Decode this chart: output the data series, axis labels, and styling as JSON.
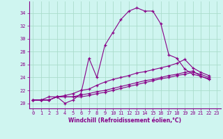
{
  "xlabel": "Windchill (Refroidissement éolien,°C)",
  "xlim": [
    -0.5,
    23.5
  ],
  "ylim": [
    19.2,
    35.8
  ],
  "yticks": [
    20,
    22,
    24,
    26,
    28,
    30,
    32,
    34
  ],
  "xticks": [
    0,
    1,
    2,
    3,
    4,
    5,
    6,
    7,
    8,
    9,
    10,
    11,
    12,
    13,
    14,
    15,
    16,
    17,
    18,
    19,
    20,
    21,
    22,
    23
  ],
  "background_color": "#cff5f0",
  "grid_color": "#aaddcc",
  "line_color": "#880088",
  "lines": [
    [
      20.5,
      20.5,
      21.0,
      21.0,
      20.0,
      20.5,
      21.5,
      27.0,
      24.0,
      29.0,
      31.0,
      33.0,
      34.3,
      34.8,
      34.3,
      34.3,
      32.3,
      27.5,
      27.0,
      25.3,
      24.5,
      24.2,
      23.7
    ],
    [
      20.5,
      20.5,
      20.5,
      21.0,
      21.2,
      21.5,
      22.0,
      22.2,
      22.8,
      23.3,
      23.7,
      24.0,
      24.3,
      24.7,
      24.9,
      25.2,
      25.5,
      25.8,
      26.2,
      26.8,
      25.5,
      24.8,
      24.3
    ],
    [
      20.5,
      20.5,
      20.5,
      21.0,
      21.0,
      21.0,
      21.3,
      21.5,
      21.8,
      22.0,
      22.3,
      22.6,
      22.9,
      23.2,
      23.5,
      23.7,
      24.0,
      24.3,
      24.5,
      24.8,
      25.0,
      24.2,
      23.8
    ],
    [
      20.5,
      20.5,
      20.5,
      21.0,
      21.0,
      21.0,
      21.0,
      21.2,
      21.5,
      21.7,
      22.0,
      22.3,
      22.6,
      22.9,
      23.2,
      23.5,
      23.8,
      24.0,
      24.3,
      24.5,
      24.8,
      24.5,
      24.0
    ]
  ]
}
